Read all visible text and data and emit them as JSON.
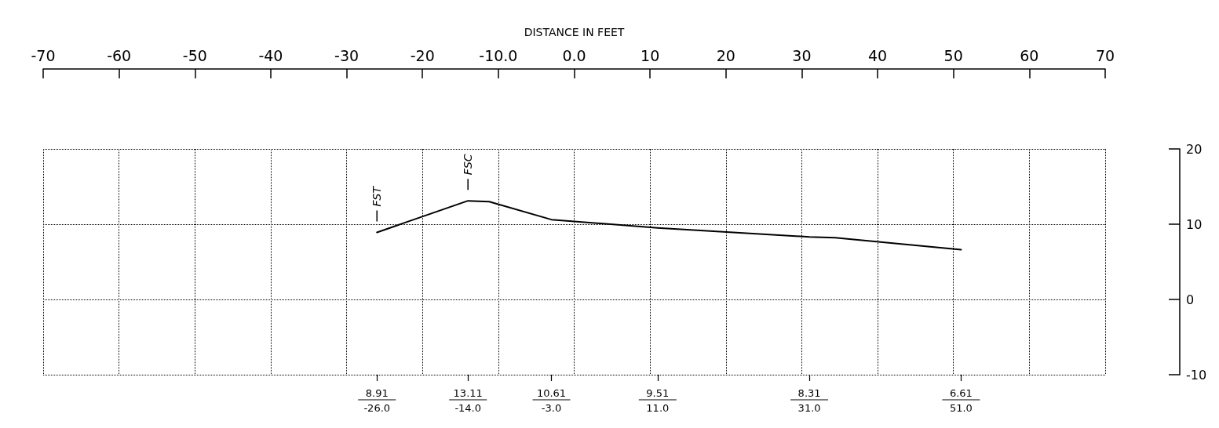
{
  "chart_data": {
    "type": "line",
    "xlabel": "DISTANCE IN FEET",
    "x": [
      -26.0,
      -14.0,
      -11.2,
      -3.0,
      11.0,
      31.0,
      34.4,
      51.0
    ],
    "series": [
      {
        "color": "#000000",
        "values": [
          8.91,
          13.11,
          13.0,
          10.61,
          9.51,
          8.31,
          8.2,
          6.61
        ]
      }
    ],
    "xlim": [
      -70,
      70
    ],
    "xticks": [
      -70,
      -60,
      -50,
      -40,
      -30,
      -20,
      {
        "value": -10,
        "label": "-10.0"
      },
      {
        "value": 0,
        "label": "0.0"
      },
      10,
      20,
      30,
      40,
      50,
      60,
      70
    ],
    "x2lim": [
      -70,
      70
    ],
    "x2ticks": [
      {
        "value": -26,
        "label": "-26.0"
      },
      {
        "value": -14,
        "label": "-14.0"
      },
      {
        "value": -3,
        "label": "-3.0"
      },
      {
        "value": 11,
        "label": "11.0"
      },
      {
        "value": 31,
        "label": "31.0"
      },
      {
        "value": 51,
        "label": "51.0"
      }
    ],
    "ylim": [
      -10,
      20
    ],
    "yticks": [
      -10,
      0,
      10,
      20
    ],
    "grid": true,
    "marker": "none",
    "line_style": "solid",
    "annotations": [
      {
        "text": "FST",
        "x": -26.0,
        "y": 8.91
      },
      {
        "text": "FSC",
        "x": -14.0,
        "y": 13.11
      },
      "8.91",
      "13.11",
      "10.61",
      "9.51",
      "8.31",
      "6.61"
    ]
  }
}
